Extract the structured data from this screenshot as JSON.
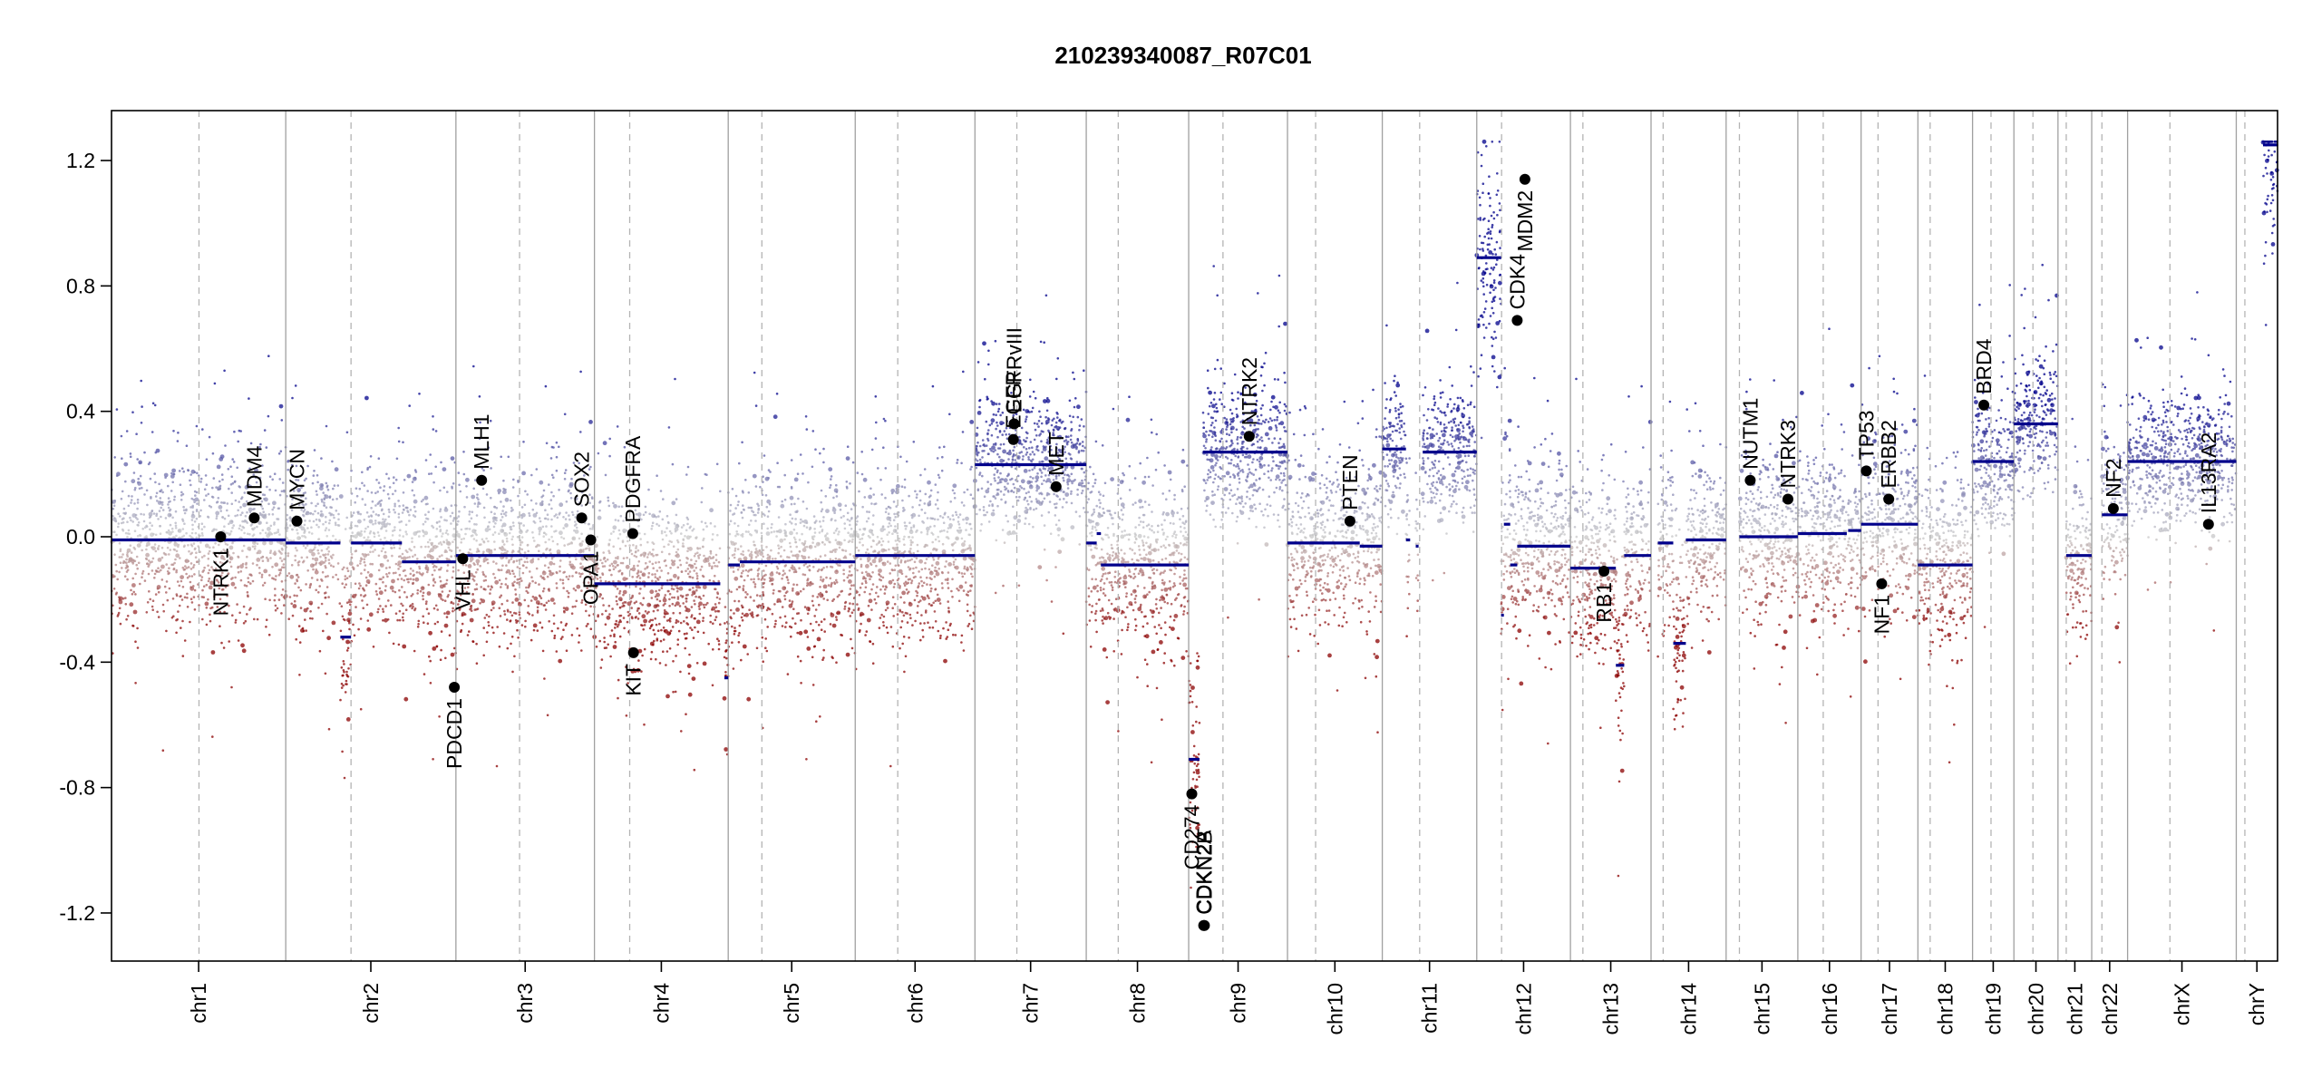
{
  "chart_data": {
    "type": "scatter",
    "title": "210239340087_R07C01",
    "xlabel": "",
    "ylabel": "",
    "ylim": [
      -1.35,
      1.35
    ],
    "y_ticks": [
      "-1.2",
      "-0.8",
      "-0.4",
      "0.0",
      "0.4",
      "0.8",
      "1.2"
    ],
    "grid": false,
    "colors": {
      "gain": "#00008b",
      "neutral": "#c8c8c8",
      "loss": "#8b0000",
      "segment": "#00008b"
    },
    "chromosomes": [
      {
        "name": "chr1",
        "start": 0.0,
        "end": 249.0,
        "centromere": 125.0
      },
      {
        "name": "chr2",
        "start": 249.0,
        "end": 492.2,
        "centromere": 342.3
      },
      {
        "name": "chr3",
        "start": 492.2,
        "end": 690.2,
        "centromere": 583.2
      },
      {
        "name": "chr4",
        "start": 690.2,
        "end": 881.4,
        "centromere": 740.6
      },
      {
        "name": "chr5",
        "start": 881.4,
        "end": 1062.9,
        "centromere": 929.5
      },
      {
        "name": "chr6",
        "start": 1062.9,
        "end": 1234.0,
        "centromere": 1123.7
      },
      {
        "name": "chr7",
        "start": 1234.0,
        "end": 1393.1,
        "centromere": 1293.9
      },
      {
        "name": "chr8",
        "start": 1393.1,
        "end": 1539.5,
        "centromere": 1438.8
      },
      {
        "name": "chr9",
        "start": 1539.5,
        "end": 1680.7,
        "centromere": 1588.5
      },
      {
        "name": "chr10",
        "start": 1680.7,
        "end": 1816.2,
        "centromere": 1720.9
      },
      {
        "name": "chr11",
        "start": 1816.2,
        "end": 1951.2,
        "centromere": 1869.6
      },
      {
        "name": "chr12",
        "start": 1951.2,
        "end": 2085.1,
        "centromere": 1986.7
      },
      {
        "name": "chr13",
        "start": 2085.1,
        "end": 2200.3,
        "centromere": 2102.9
      },
      {
        "name": "chr14",
        "start": 2200.3,
        "end": 2307.6,
        "centromere": 2217.6
      },
      {
        "name": "chr15",
        "start": 2307.6,
        "end": 2410.1,
        "centromere": 2326.6
      },
      {
        "name": "chr16",
        "start": 2410.1,
        "end": 2500.5,
        "centromere": 2446.4
      },
      {
        "name": "chr17",
        "start": 2500.5,
        "end": 2581.7,
        "centromere": 2524.7
      },
      {
        "name": "chr18",
        "start": 2581.7,
        "end": 2659.8,
        "centromere": 2599.2
      },
      {
        "name": "chr19",
        "start": 2659.8,
        "end": 2718.9,
        "centromere": 2686.2
      },
      {
        "name": "chr20",
        "start": 2718.9,
        "end": 2781.9,
        "centromere": 2746.1
      },
      {
        "name": "chr21",
        "start": 2781.9,
        "end": 2830.1,
        "centromere": 2793.7
      },
      {
        "name": "chr22",
        "start": 2830.1,
        "end": 2881.4,
        "centromere": 2844.7
      },
      {
        "name": "chrX",
        "start": 2881.4,
        "end": 3036.7,
        "centromere": 2941.9
      },
      {
        "name": "chrY",
        "start": 3036.7,
        "end": 3095.7,
        "centromere": 3049.0
      }
    ],
    "segments": [
      {
        "x0": 0.0,
        "x1": 249.0,
        "y": -0.01
      },
      {
        "x0": 249.0,
        "x1": 327.0,
        "y": -0.02
      },
      {
        "x0": 327.0,
        "x1": 342.3,
        "y": -0.32
      },
      {
        "x0": 342.3,
        "x1": 415.0,
        "y": -0.02
      },
      {
        "x0": 415.0,
        "x1": 492.2,
        "y": -0.08
      },
      {
        "x0": 492.2,
        "x1": 690.2,
        "y": -0.06
      },
      {
        "x0": 690.2,
        "x1": 870.0,
        "y": -0.15
      },
      {
        "x0": 876.0,
        "x1": 881.4,
        "y": -0.45
      },
      {
        "x0": 881.4,
        "x1": 898.0,
        "y": -0.09
      },
      {
        "x0": 898.0,
        "x1": 1062.9,
        "y": -0.08
      },
      {
        "x0": 1062.9,
        "x1": 1234.0,
        "y": -0.06
      },
      {
        "x0": 1234.0,
        "x1": 1393.1,
        "y": 0.23
      },
      {
        "x0": 1393.1,
        "x1": 1408.0,
        "y": -0.02
      },
      {
        "x0": 1408.0,
        "x1": 1414.0,
        "y": 0.01
      },
      {
        "x0": 1414.0,
        "x1": 1539.5,
        "y": -0.09
      },
      {
        "x0": 1539.5,
        "x1": 1555.0,
        "y": -0.71
      },
      {
        "x0": 1560.0,
        "x1": 1680.7,
        "y": 0.27
      },
      {
        "x0": 1680.7,
        "x1": 1784.0,
        "y": -0.02
      },
      {
        "x0": 1784.0,
        "x1": 1816.2,
        "y": -0.03
      },
      {
        "x0": 1816.2,
        "x1": 1850.0,
        "y": 0.28
      },
      {
        "x0": 1850.0,
        "x1": 1856.0,
        "y": -0.01
      },
      {
        "x0": 1864.0,
        "x1": 1868.0,
        "y": -0.03
      },
      {
        "x0": 1874.0,
        "x1": 1951.2,
        "y": 0.27
      },
      {
        "x0": 1951.2,
        "x1": 1986.0,
        "y": 0.89
      },
      {
        "x0": 1986.0,
        "x1": 1990.0,
        "y": -0.25
      },
      {
        "x0": 1990.0,
        "x1": 1999.0,
        "y": 0.04
      },
      {
        "x0": 1999.0,
        "x1": 2009.0,
        "y": -0.09
      },
      {
        "x0": 2009.0,
        "x1": 2085.1,
        "y": -0.03
      },
      {
        "x0": 2085.1,
        "x1": 2150.0,
        "y": -0.1
      },
      {
        "x0": 2150.0,
        "x1": 2162.0,
        "y": -0.41
      },
      {
        "x0": 2162.0,
        "x1": 2200.3,
        "y": -0.06
      },
      {
        "x0": 2210.0,
        "x1": 2232.0,
        "y": -0.02
      },
      {
        "x0": 2232.0,
        "x1": 2250.0,
        "y": -0.34
      },
      {
        "x0": 2250.0,
        "x1": 2307.6,
        "y": -0.01
      },
      {
        "x0": 2326.6,
        "x1": 2410.1,
        "y": 0.0
      },
      {
        "x0": 2410.1,
        "x1": 2480.0,
        "y": 0.01
      },
      {
        "x0": 2482.0,
        "x1": 2500.5,
        "y": 0.02
      },
      {
        "x0": 2500.5,
        "x1": 2581.7,
        "y": 0.04
      },
      {
        "x0": 2581.7,
        "x1": 2659.8,
        "y": -0.09
      },
      {
        "x0": 2659.8,
        "x1": 2718.9,
        "y": 0.24
      },
      {
        "x0": 2718.9,
        "x1": 2781.9,
        "y": 0.36
      },
      {
        "x0": 2793.7,
        "x1": 2830.1,
        "y": -0.06
      },
      {
        "x0": 2844.7,
        "x1": 2881.4,
        "y": 0.07
      },
      {
        "x0": 2881.4,
        "x1": 3036.7,
        "y": 0.24
      },
      {
        "x0": 3075.0,
        "x1": 3095.7,
        "y": 1.25
      }
    ],
    "genes": [
      {
        "name": "NTRK1",
        "x": 156.0,
        "y": 0.0,
        "label_side": "below"
      },
      {
        "name": "MDM4",
        "x": 204.0,
        "y": 0.06,
        "label_side": "above"
      },
      {
        "name": "MYCN",
        "x": 265.0,
        "y": 0.05,
        "label_side": "above"
      },
      {
        "name": "PDCD1",
        "x": 490.0,
        "y": -0.48,
        "label_side": "below"
      },
      {
        "name": "VHL",
        "x": 502.0,
        "y": -0.07,
        "label_side": "below"
      },
      {
        "name": "MLH1",
        "x": 529.0,
        "y": 0.18,
        "label_side": "above"
      },
      {
        "name": "SOX2",
        "x": 672.0,
        "y": 0.06,
        "label_side": "above"
      },
      {
        "name": "OPA1",
        "x": 685.0,
        "y": -0.01,
        "label_side": "below"
      },
      {
        "name": "PDGFRA",
        "x": 745.0,
        "y": 0.01,
        "label_side": "above"
      },
      {
        "name": "KIT",
        "x": 746.0,
        "y": -0.37,
        "label_side": "below"
      },
      {
        "name": "EGFR",
        "x": 1289.0,
        "y": 0.31,
        "label_side": "above"
      },
      {
        "name": "EGFRvIII",
        "x": 1290.0,
        "y": 0.36,
        "label_side": "above"
      },
      {
        "name": "MET",
        "x": 1350.0,
        "y": 0.16,
        "label_side": "above"
      },
      {
        "name": "CD274",
        "x": 1544.0,
        "y": -0.82,
        "label_side": "below"
      },
      {
        "name": "CDKN2A",
        "x": 1561.0,
        "y": -1.24,
        "label_side": "above"
      },
      {
        "name": "CDKN2B",
        "x": 1562.0,
        "y": -1.24,
        "label_side": "above"
      },
      {
        "name": "NTRK2",
        "x": 1626.0,
        "y": 0.32,
        "label_side": "above"
      },
      {
        "name": "PTEN",
        "x": 1770.0,
        "y": 0.05,
        "label_side": "above"
      },
      {
        "name": "CDK4",
        "x": 2009.0,
        "y": 0.69,
        "label_side": "above"
      },
      {
        "name": "MDM2",
        "x": 2020.0,
        "y": 1.14,
        "label_side": "below"
      },
      {
        "name": "RB1",
        "x": 2133.0,
        "y": -0.11,
        "label_side": "below"
      },
      {
        "name": "NUTM1",
        "x": 2342.0,
        "y": 0.18,
        "label_side": "above"
      },
      {
        "name": "NTRK3",
        "x": 2396.0,
        "y": 0.12,
        "label_side": "above"
      },
      {
        "name": "TP53",
        "x": 2508.0,
        "y": 0.21,
        "label_side": "above"
      },
      {
        "name": "NF1",
        "x": 2530.0,
        "y": -0.15,
        "label_side": "below"
      },
      {
        "name": "ERBB2",
        "x": 2540.0,
        "y": 0.12,
        "label_side": "above"
      },
      {
        "name": "BRD4",
        "x": 2676.0,
        "y": 0.42,
        "label_side": "above"
      },
      {
        "name": "NF2",
        "x": 2861.0,
        "y": 0.09,
        "label_side": "above"
      },
      {
        "name": "IL13RA2",
        "x": 2997.0,
        "y": 0.04,
        "label_side": "above"
      }
    ],
    "probe_summary": {
      "note": "Background probe cloud rendered as density following segment means per region",
      "regions": [
        {
          "x0": 1234.0,
          "x1": 1393.1,
          "mean": 0.33,
          "sd": 0.12
        },
        {
          "x0": 1560.0,
          "x1": 1680.7,
          "mean": 0.3,
          "sd": 0.1
        },
        {
          "x0": 1874.0,
          "x1": 1951.2,
          "mean": 0.3,
          "sd": 0.12
        },
        {
          "x0": 1951.2,
          "x1": 1986.0,
          "mean": 0.9,
          "sd": 0.2
        },
        {
          "x0": 2659.8,
          "x1": 2781.9,
          "mean": 0.35,
          "sd": 0.12
        },
        {
          "x0": 1539.5,
          "x1": 1555.0,
          "mean": -0.7,
          "sd": 0.15
        }
      ]
    }
  }
}
